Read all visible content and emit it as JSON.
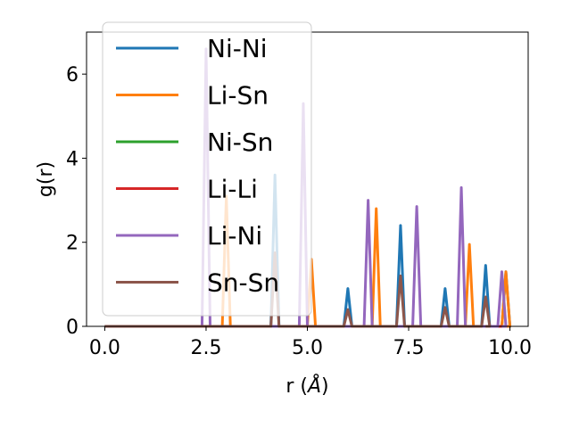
{
  "chart_data": {
    "type": "line",
    "title": "",
    "xlabel": "r (",
    "xlabel_unit": "Å",
    "xlabel_close": ")",
    "ylabel": "g(r)",
    "xlim": [
      -0.45,
      10.45
    ],
    "ylim": [
      0,
      7
    ],
    "xticks": [
      0.0,
      2.5,
      5.0,
      7.5,
      10.0
    ],
    "xtick_labels": [
      "0.0",
      "2.5",
      "5.0",
      "7.5",
      "10.0"
    ],
    "yticks": [
      0,
      2,
      4,
      6
    ],
    "ytick_labels": [
      "0",
      "2",
      "4",
      "6"
    ],
    "grid": false,
    "legend_position": "upper-left",
    "peak_half_width": 0.1,
    "series": [
      {
        "name": "Ni-Ni",
        "color": "#1f77b4",
        "x": [
          0.0,
          4.2,
          6.0,
          7.3,
          8.4,
          9.4,
          9.9
        ],
        "y": [
          0.0,
          3.6,
          0.9,
          2.4,
          0.9,
          1.45,
          1.3
        ]
      },
      {
        "name": "Li-Sn",
        "color": "#ff7f0e",
        "x": [
          0.0,
          3.0,
          5.1,
          6.7,
          9.0,
          9.9
        ],
        "y": [
          0.0,
          3.1,
          1.6,
          2.8,
          1.95,
          1.3
        ]
      },
      {
        "name": "Ni-Sn",
        "color": "#2ca02c",
        "x": [
          0.0,
          9.9
        ],
        "y": [
          0.0,
          0.0
        ]
      },
      {
        "name": "Li-Li",
        "color": "#d62728",
        "x": [
          0.0,
          9.9
        ],
        "y": [
          0.0,
          0.0
        ]
      },
      {
        "name": "Li-Ni",
        "color": "#9467bd",
        "x": [
          0.0,
          2.5,
          4.9,
          6.5,
          7.7,
          8.8,
          9.8
        ],
        "y": [
          0.0,
          6.6,
          5.3,
          3.0,
          2.85,
          3.3,
          1.3
        ]
      },
      {
        "name": "Sn-Sn",
        "color": "#8c564b",
        "x": [
          0.0,
          4.2,
          6.0,
          7.3,
          8.4,
          9.4
        ],
        "y": [
          0.0,
          1.75,
          0.4,
          1.2,
          0.45,
          0.7
        ]
      }
    ]
  }
}
